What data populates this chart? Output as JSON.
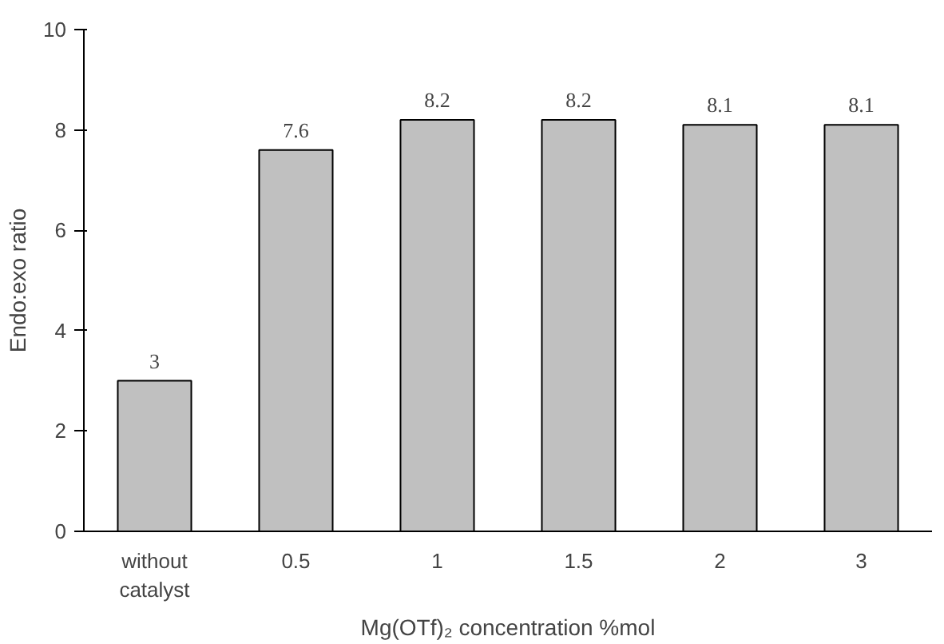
{
  "chart_data": {
    "type": "bar",
    "xlabel": "Mg(OTf)₂ concentration %mol",
    "ylabel": "Endo:exo ratio",
    "categories": [
      "without catalyst",
      "0.5",
      "1",
      "1.5",
      "2",
      "3"
    ],
    "values": [
      3,
      7.6,
      8.2,
      8.2,
      8.1,
      8.1
    ],
    "color": "#c0c0c0",
    "ylim": [
      0,
      10
    ],
    "yticks": [
      0,
      2,
      4,
      6,
      8,
      10
    ],
    "grid": false,
    "data_labels": true
  }
}
